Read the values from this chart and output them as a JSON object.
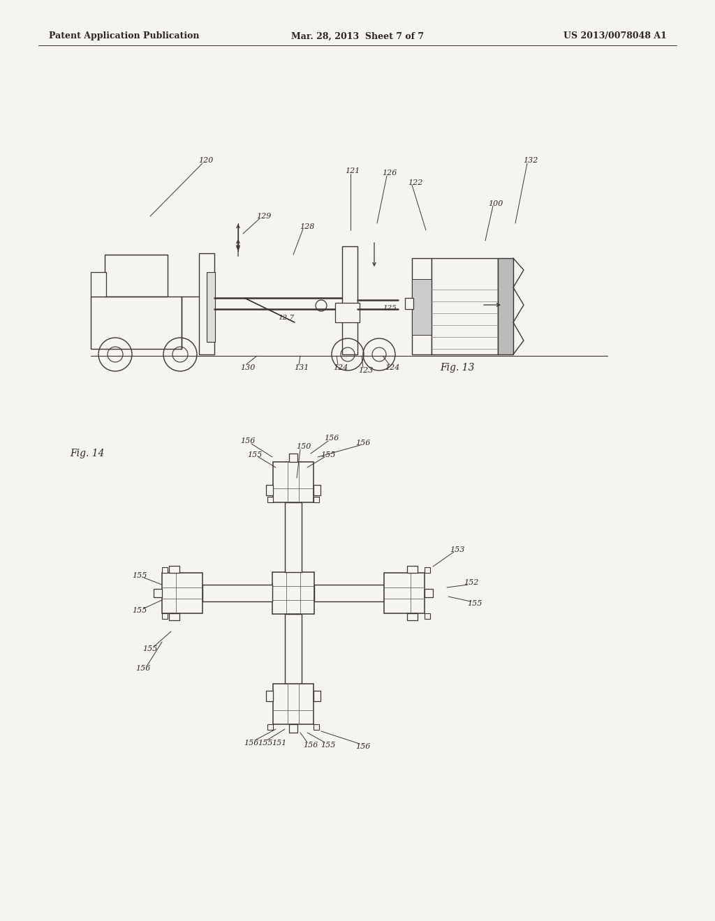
{
  "background_color": "#f5f4f0",
  "header_left": "Patent Application Publication",
  "header_center": "Mar. 28, 2013  Sheet 7 of 7",
  "header_right": "US 2013/0078048 A1",
  "line_color": "#3a3530",
  "text_color": "#2a2520",
  "fig13_label": "Fig. 13",
  "fig14_label": "Fig. 14"
}
